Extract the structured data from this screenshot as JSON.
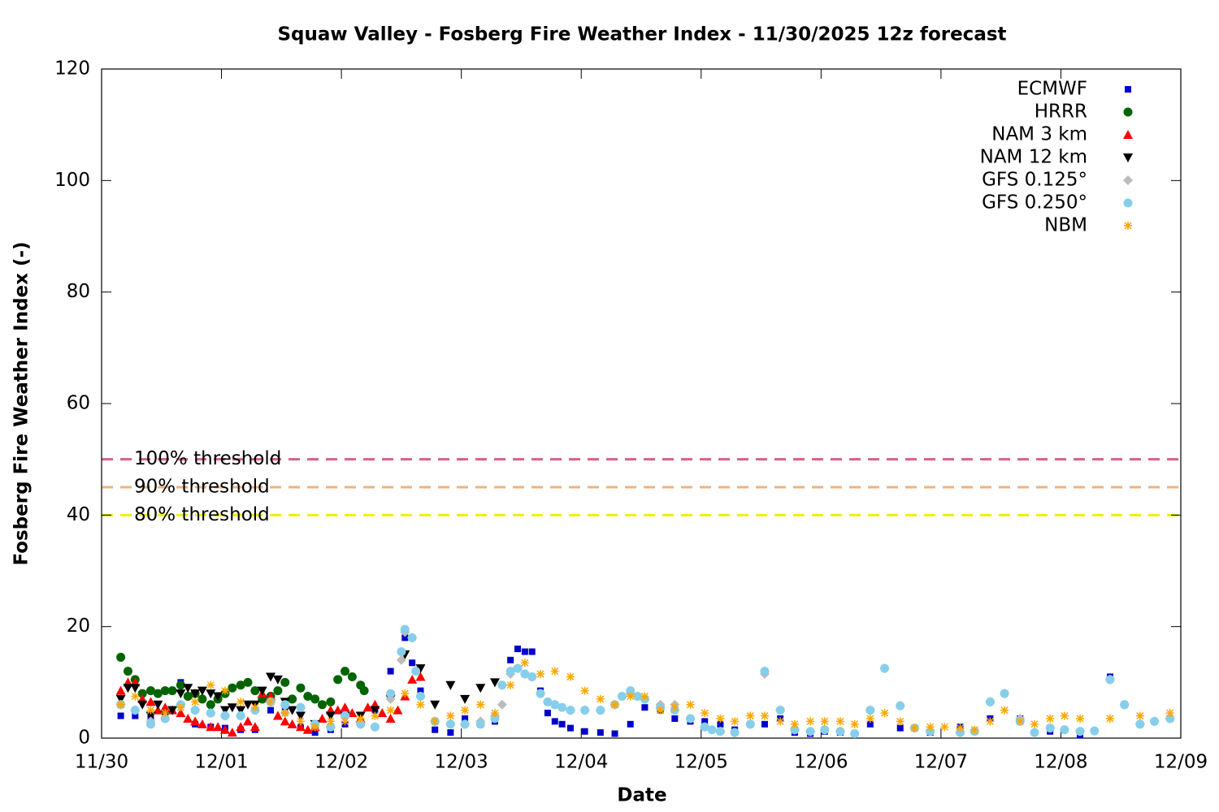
{
  "chart_data": {
    "type": "scatter",
    "title": "Squaw Valley - Fosberg Fire Weather Index - 11/30/2025 12z forecast",
    "x_label": "Date",
    "y_label": "Fosberg Fire Weather Index (-)",
    "xlim": [
      0,
      9
    ],
    "xticks": [
      {
        "value": 0,
        "label": "11/30"
      },
      {
        "value": 1,
        "label": "12/01"
      },
      {
        "value": 2,
        "label": "12/02"
      },
      {
        "value": 3,
        "label": "12/03"
      },
      {
        "value": 4,
        "label": "12/04"
      },
      {
        "value": 5,
        "label": "12/05"
      },
      {
        "value": 6,
        "label": "12/06"
      },
      {
        "value": 7,
        "label": "12/07"
      },
      {
        "value": 8,
        "label": "12/08"
      },
      {
        "value": 9,
        "label": "12/09"
      }
    ],
    "ylim": [
      0,
      120
    ],
    "yticks": [
      0,
      20,
      40,
      60,
      80,
      100,
      120
    ],
    "grid": false,
    "legend": "top-right",
    "thresholds": [
      {
        "label": "100% threshold",
        "value": 50,
        "color": "#dc5f80"
      },
      {
        "label": "90% threshold",
        "value": 45,
        "color": "#f2b27a"
      },
      {
        "label": "80% threshold",
        "value": 40,
        "color": "#f0f000"
      }
    ],
    "series": [
      {
        "name": "ECMWF",
        "color": "#0000cc",
        "marker": "square",
        "x": [
          0.16,
          0.28,
          0.41,
          0.53,
          0.66,
          0.78,
          0.91,
          1.03,
          1.16,
          1.28,
          1.41,
          1.53,
          1.66,
          1.78,
          1.91,
          2.03,
          2.16,
          2.28,
          2.41,
          2.53,
          2.59,
          2.66,
          2.78,
          2.91,
          3.03,
          3.16,
          3.28,
          3.41,
          3.47,
          3.53,
          3.59,
          3.66,
          3.72,
          3.78,
          3.84,
          3.91,
          4.03,
          4.16,
          4.28,
          4.41,
          4.53,
          4.66,
          4.78,
          4.91,
          5.03,
          5.16,
          5.28,
          5.41,
          5.53,
          5.66,
          5.78,
          5.91,
          6.03,
          6.16,
          6.41,
          6.66,
          6.91,
          7.16,
          7.41,
          7.66,
          7.91,
          8.16,
          8.41,
          8.53,
          8.66,
          8.78,
          8.91
        ],
        "values": [
          4,
          4,
          3.5,
          3.5,
          10,
          2.5,
          2,
          1.8,
          1.5,
          1.5,
          5,
          5,
          2,
          1,
          1.5,
          2.5,
          3,
          5,
          12,
          18,
          13.5,
          8.5,
          1.5,
          1,
          3.5,
          2.5,
          3,
          14,
          16,
          15.5,
          15.5,
          8.5,
          4.5,
          3,
          2.5,
          1.8,
          1.2,
          1,
          0.8,
          2.5,
          5.5,
          5,
          3.5,
          3,
          3,
          2.5,
          1.5,
          2.5,
          2.5,
          3.5,
          1,
          0.8,
          1.2,
          1,
          2.5,
          1.8,
          1,
          2,
          3.5,
          3.5,
          1.2,
          0.5,
          11,
          6,
          2.5,
          3,
          3.5
        ]
      },
      {
        "name": "HRRR",
        "color": "#006400",
        "marker": "circle",
        "x": [
          0.16,
          0.22,
          0.28,
          0.34,
          0.41,
          0.47,
          0.53,
          0.59,
          0.66,
          0.72,
          0.78,
          0.84,
          0.91,
          0.97,
          1.03,
          1.09,
          1.16,
          1.22,
          1.28,
          1.34,
          1.41,
          1.47,
          1.53,
          1.59,
          1.66,
          1.72,
          1.78,
          1.84,
          1.91,
          1.97,
          2.03,
          2.09,
          2.16,
          2.19
        ],
        "values": [
          14.5,
          12,
          10.5,
          8,
          8.5,
          8,
          8.5,
          8.5,
          9.5,
          7.5,
          8,
          7,
          6,
          7,
          8,
          9,
          9.5,
          10,
          8.5,
          7,
          7.5,
          8.5,
          10,
          7,
          9,
          7.5,
          7,
          6,
          6.5,
          10.5,
          12,
          11,
          9.5,
          8.5
        ]
      },
      {
        "name": "NAM 3 km",
        "color": "#ff0000",
        "marker": "triangle",
        "x": [
          0.16,
          0.22,
          0.28,
          0.34,
          0.41,
          0.47,
          0.53,
          0.59,
          0.66,
          0.72,
          0.78,
          0.84,
          0.91,
          0.97,
          1.03,
          1.09,
          1.16,
          1.22,
          1.28,
          1.34,
          1.41,
          1.47,
          1.53,
          1.59,
          1.66,
          1.72,
          1.78,
          1.84,
          1.91,
          1.97,
          2.03,
          2.09,
          2.16,
          2.22,
          2.28,
          2.34,
          2.41,
          2.47,
          2.53,
          2.59,
          2.66
        ],
        "values": [
          8.5,
          10,
          10,
          7,
          6.5,
          5,
          5.5,
          5,
          4.5,
          3.5,
          3,
          2.5,
          2,
          2,
          1.5,
          1,
          2,
          3,
          2,
          8,
          7.5,
          4,
          3,
          2.5,
          2,
          1.5,
          2,
          3.5,
          5,
          5,
          5.5,
          4.5,
          3.5,
          5.5,
          6,
          4.5,
          3.5,
          5,
          7.5,
          10.5,
          11
        ]
      },
      {
        "name": "NAM 12 km",
        "color": "#000000",
        "marker": "triangle-down",
        "x": [
          0.16,
          0.22,
          0.28,
          0.34,
          0.41,
          0.47,
          0.53,
          0.59,
          0.66,
          0.72,
          0.78,
          0.84,
          0.91,
          0.97,
          1.03,
          1.09,
          1.16,
          1.22,
          1.28,
          1.34,
          1.41,
          1.47,
          1.53,
          1.59,
          1.66,
          1.78,
          1.91,
          2.03,
          2.16,
          2.28,
          2.41,
          2.53,
          2.66,
          2.78,
          2.91,
          3.03,
          3.16,
          3.28
        ],
        "values": [
          7,
          9,
          9,
          6,
          4,
          6,
          4,
          5,
          8,
          9,
          8,
          8.5,
          8,
          7.5,
          5,
          5.5,
          5,
          6,
          6,
          8.5,
          11,
          10.5,
          6.5,
          5,
          4,
          2.5,
          4,
          4,
          4,
          5,
          7,
          15,
          12.5,
          6,
          9.5,
          7,
          9,
          10
        ]
      },
      {
        "name": "GFS 0.125°",
        "color": "#bbbbbb",
        "marker": "diamond",
        "x": [
          0.16,
          0.28,
          0.41,
          0.53,
          0.66,
          0.78,
          0.91,
          1.03,
          1.16,
          1.28,
          1.41,
          1.53,
          1.66,
          1.78,
          1.91,
          2.03,
          2.16,
          2.28,
          2.41,
          2.5,
          2.53,
          2.59,
          2.66,
          2.78,
          2.91,
          3.03,
          3.16,
          3.28,
          3.34,
          3.41,
          3.47,
          3.53,
          3.59,
          3.66,
          3.78,
          3.91,
          4.03,
          4.16,
          4.28,
          4.41,
          4.53,
          4.66,
          4.78,
          4.91,
          5.03,
          5.16,
          5.28,
          5.41,
          5.53,
          5.66,
          5.78,
          5.91,
          6.16,
          6.41,
          6.53,
          6.66,
          6.91,
          7.16,
          7.41,
          7.53,
          7.66,
          7.91,
          8.16,
          8.41,
          8.53,
          8.66,
          8.78,
          8.91
        ],
        "values": [
          6,
          5,
          3,
          3.5,
          6,
          5,
          4.5,
          4,
          4,
          5,
          6.5,
          4.5,
          5.5,
          2.5,
          2,
          4,
          2.5,
          2,
          7,
          14,
          19,
          18,
          7.5,
          3,
          2.5,
          2.5,
          3,
          4,
          6,
          11.5,
          12.5,
          11.5,
          11,
          8,
          6,
          5,
          5,
          5,
          6,
          8,
          7,
          6,
          6,
          3.5,
          2,
          1.2,
          1,
          2.5,
          11.5,
          5,
          1.5,
          1.2,
          1.2,
          5,
          12.5,
          5.8,
          1.2,
          1,
          6.5,
          8,
          3.5,
          1.8,
          1.2,
          10.5,
          6,
          2.5,
          3,
          3.5
        ]
      },
      {
        "name": "GFS 0.250°",
        "color": "#87ceeb",
        "marker": "circle",
        "x": [
          0.16,
          0.28,
          0.41,
          0.53,
          0.66,
          0.78,
          0.91,
          1.03,
          1.16,
          1.28,
          1.41,
          1.53,
          1.66,
          1.78,
          1.91,
          2.03,
          2.16,
          2.28,
          2.41,
          2.5,
          2.53,
          2.59,
          2.62,
          2.66,
          2.78,
          2.91,
          3.03,
          3.16,
          3.28,
          3.34,
          3.41,
          3.47,
          3.53,
          3.59,
          3.66,
          3.72,
          3.78,
          3.84,
          3.91,
          4.03,
          4.16,
          4.28,
          4.34,
          4.41,
          4.47,
          4.53,
          4.66,
          4.78,
          4.91,
          5.03,
          5.09,
          5.16,
          5.28,
          5.41,
          5.53,
          5.66,
          5.78,
          5.91,
          6.03,
          6.16,
          6.28,
          6.41,
          6.53,
          6.66,
          6.78,
          6.91,
          7.16,
          7.28,
          7.41,
          7.53,
          7.66,
          7.78,
          7.91,
          8.03,
          8.16,
          8.28,
          8.41,
          8.53,
          8.66,
          8.78,
          8.91
        ],
        "values": [
          6,
          5,
          2.5,
          3.5,
          6,
          5,
          4.5,
          4,
          4,
          5,
          6.5,
          6,
          5.5,
          2.5,
          2,
          4,
          2.5,
          2,
          8,
          15.5,
          19.5,
          18,
          12,
          7.5,
          3,
          2.5,
          2.5,
          2.5,
          3.5,
          9.5,
          12,
          12.5,
          11.5,
          11,
          8,
          6.5,
          6,
          5.5,
          5,
          5,
          5,
          6,
          7.5,
          8.5,
          7.5,
          7,
          5.5,
          5,
          3.5,
          2,
          1.5,
          1.2,
          1,
          2.5,
          12,
          5,
          1.5,
          1.2,
          1.5,
          1.2,
          0.8,
          5,
          12.5,
          5.8,
          1.8,
          1.2,
          1,
          1.2,
          6.5,
          8,
          3,
          1,
          1.8,
          1.5,
          1.2,
          1.3,
          10.5,
          6,
          2.5,
          3,
          3.5
        ]
      },
      {
        "name": "NBM",
        "color": "#ffa500",
        "marker": "asterisk",
        "x": [
          0.16,
          0.28,
          0.41,
          0.53,
          0.66,
          0.78,
          0.91,
          1.03,
          1.16,
          1.28,
          1.41,
          1.53,
          1.66,
          1.78,
          1.91,
          2.03,
          2.16,
          2.28,
          2.41,
          2.53,
          2.66,
          2.78,
          2.91,
          3.03,
          3.16,
          3.28,
          3.41,
          3.53,
          3.66,
          3.78,
          3.91,
          4.03,
          4.16,
          4.28,
          4.41,
          4.53,
          4.66,
          4.78,
          4.91,
          5.03,
          5.16,
          5.28,
          5.41,
          5.53,
          5.66,
          5.78,
          5.91,
          6.03,
          6.16,
          6.28,
          6.41,
          6.53,
          6.66,
          6.78,
          6.91,
          7.03,
          7.16,
          7.28,
          7.41,
          7.53,
          7.66,
          7.78,
          7.91,
          8.03,
          8.16,
          8.41,
          8.66,
          8.91
        ],
        "values": [
          6,
          7.5,
          5,
          4.5,
          5.5,
          6.5,
          9.5,
          8.5,
          6.5,
          5.5,
          6.5,
          4.5,
          3,
          2,
          3,
          3,
          3.5,
          4,
          5,
          8,
          6,
          3,
          4,
          5,
          6,
          4.5,
          9.5,
          13.5,
          11.5,
          12,
          11,
          8.5,
          7,
          6,
          7.5,
          7.5,
          5,
          5.5,
          6,
          4.5,
          3.5,
          3,
          4,
          4,
          3,
          2.5,
          3,
          3,
          3,
          2.5,
          3.5,
          4.5,
          3,
          1.8,
          2,
          2,
          1.8,
          1.5,
          3,
          5,
          3,
          2.5,
          3.5,
          4,
          3.5,
          3.5,
          4,
          4.5
        ]
      }
    ]
  }
}
